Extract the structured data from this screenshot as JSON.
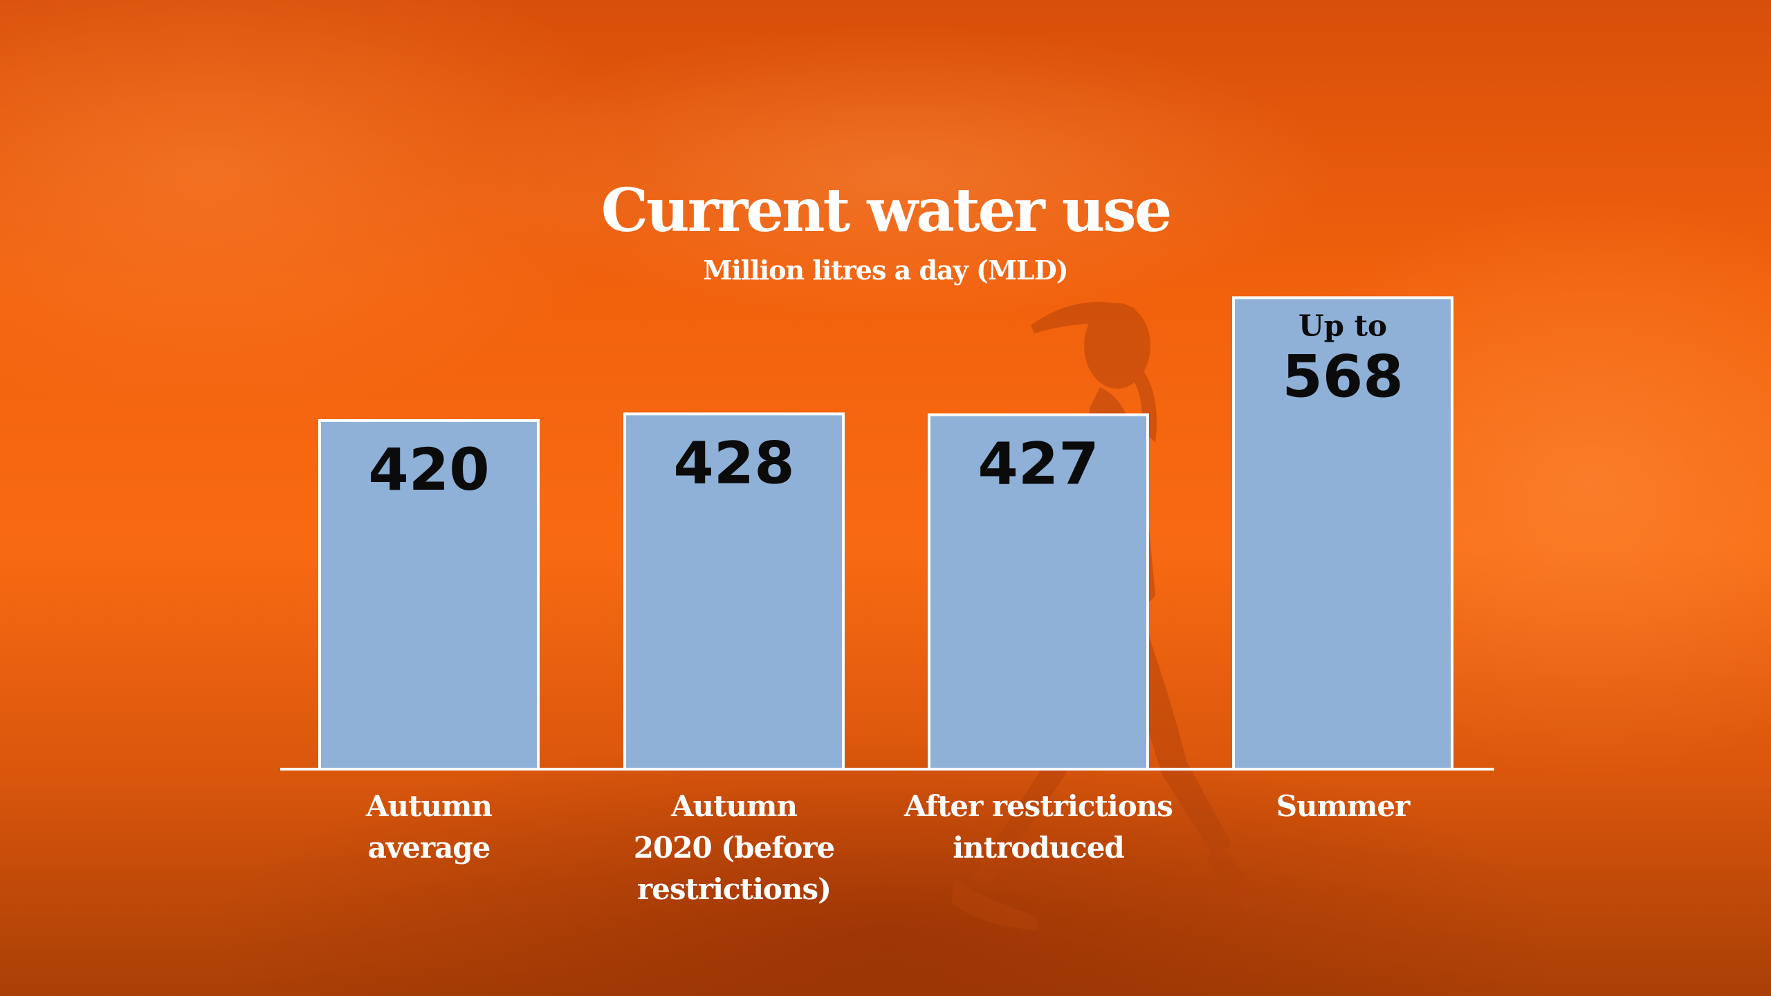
{
  "title": "Current water use",
  "subtitle": "Million litres a day (MLD)",
  "colors": {
    "background": "#f2620d",
    "bar_fill": "#8fb1d8",
    "bar_stroke": "#ffffff",
    "value_text": "#0b0b0b",
    "label_text": "#ffffff"
  },
  "chart_data": {
    "type": "bar",
    "title": "Current water use",
    "subtitle": "Million litres a day (MLD)",
    "categories": [
      [
        "Autumn",
        "average"
      ],
      [
        "Autumn",
        "2020 (before",
        "restrictions)"
      ],
      [
        "After restrictions",
        "introduced"
      ],
      [
        "Summer"
      ]
    ],
    "values": [
      420,
      428,
      427,
      568
    ],
    "value_labels": [
      "420",
      "428",
      "427",
      "568"
    ],
    "value_prefixes": [
      "",
      "",
      "",
      "Up to"
    ],
    "ylabel": "",
    "xlabel": "",
    "grid": false,
    "legend": "none"
  }
}
